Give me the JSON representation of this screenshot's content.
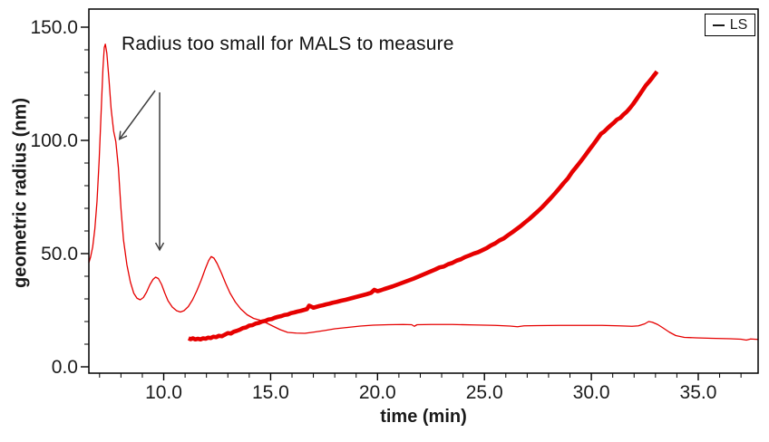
{
  "legend": {
    "entries": [
      {
        "label": "LS",
        "sample_color": "#1a1a1a"
      }
    ],
    "position": "top-right"
  },
  "annotation": {
    "text": "Radius too small for MALS to measure"
  },
  "chart_data": {
    "type": "line",
    "title": "",
    "xlabel": "time (min)",
    "ylabel": "geometric radius (nm)",
    "xlim": [
      6.5,
      37.8
    ],
    "ylim": [
      -2.8,
      158
    ],
    "grid": false,
    "legend_position": "top-right",
    "x_ticks": {
      "major": [
        10,
        15,
        20,
        25,
        30,
        35
      ],
      "labels": [
        "10.0",
        "15.0",
        "20.0",
        "25.0",
        "30.0",
        "35.0"
      ],
      "minor_step": 1
    },
    "y_ticks": {
      "major": [
        0,
        50,
        100,
        150
      ],
      "labels": [
        "0.0",
        "50.0",
        "100.0",
        "150.0"
      ],
      "minor_step": 10
    },
    "colors": {
      "series": "#e60000",
      "axis": "#000000",
      "arrow": "#3d3d3d",
      "text": "#1a1a1a"
    },
    "series": [
      {
        "name": "LS chromatogram (thin trace)",
        "stroke_width": 1.3,
        "points": [
          [
            6.5,
            46
          ],
          [
            6.58,
            48.5
          ],
          [
            6.68,
            53
          ],
          [
            6.78,
            61
          ],
          [
            6.88,
            73
          ],
          [
            6.98,
            91
          ],
          [
            7.08,
            114
          ],
          [
            7.16,
            132
          ],
          [
            7.22,
            141
          ],
          [
            7.27,
            142.5
          ],
          [
            7.34,
            138.5
          ],
          [
            7.44,
            127
          ],
          [
            7.54,
            114
          ],
          [
            7.66,
            104
          ],
          [
            7.76,
            99.5
          ],
          [
            7.88,
            88
          ],
          [
            8.0,
            70
          ],
          [
            8.12,
            56
          ],
          [
            8.28,
            45
          ],
          [
            8.44,
            37.5
          ],
          [
            8.6,
            32.5
          ],
          [
            8.75,
            30.3
          ],
          [
            8.9,
            29.6
          ],
          [
            9.05,
            30.6
          ],
          [
            9.2,
            33
          ],
          [
            9.35,
            36.2
          ],
          [
            9.5,
            38.6
          ],
          [
            9.62,
            39.6
          ],
          [
            9.75,
            39
          ],
          [
            9.9,
            36.4
          ],
          [
            10.05,
            32.6
          ],
          [
            10.2,
            29.2
          ],
          [
            10.4,
            26.4
          ],
          [
            10.6,
            24.8
          ],
          [
            10.78,
            24.2
          ],
          [
            10.95,
            24.8
          ],
          [
            11.15,
            26.6
          ],
          [
            11.35,
            29.6
          ],
          [
            11.55,
            33.6
          ],
          [
            11.75,
            38.2
          ],
          [
            11.95,
            43.4
          ],
          [
            12.1,
            46.9
          ],
          [
            12.22,
            48.7
          ],
          [
            12.35,
            48
          ],
          [
            12.5,
            45.6
          ],
          [
            12.7,
            41.4
          ],
          [
            12.9,
            36.8
          ],
          [
            13.1,
            32.6
          ],
          [
            13.35,
            28.6
          ],
          [
            13.6,
            25.6
          ],
          [
            13.9,
            23
          ],
          [
            14.2,
            21.4
          ],
          [
            14.5,
            20.6
          ],
          [
            14.8,
            19.4
          ],
          [
            15.1,
            18
          ],
          [
            15.45,
            16.4
          ],
          [
            15.8,
            15.2
          ],
          [
            16.2,
            14.9
          ],
          [
            16.6,
            14.8
          ],
          [
            17.0,
            15.3
          ],
          [
            17.5,
            16
          ],
          [
            18.0,
            16.8
          ],
          [
            18.6,
            17.4
          ],
          [
            19.2,
            18
          ],
          [
            19.8,
            18.4
          ],
          [
            20.5,
            18.6
          ],
          [
            21.2,
            18.7
          ],
          [
            21.6,
            18.6
          ],
          [
            21.72,
            17.9
          ],
          [
            21.85,
            18.6
          ],
          [
            22.5,
            18.7
          ],
          [
            23.5,
            18.7
          ],
          [
            24.5,
            18.5
          ],
          [
            25.5,
            18.3
          ],
          [
            26.2,
            18
          ],
          [
            26.55,
            17.7
          ],
          [
            26.85,
            18.1
          ],
          [
            27.5,
            18.2
          ],
          [
            28.5,
            18.3
          ],
          [
            29.5,
            18.3
          ],
          [
            30.5,
            18.3
          ],
          [
            31.3,
            18.1
          ],
          [
            31.9,
            17.9
          ],
          [
            32.2,
            18.1
          ],
          [
            32.5,
            19
          ],
          [
            32.68,
            20
          ],
          [
            32.85,
            19.7
          ],
          [
            33.1,
            18.7
          ],
          [
            33.35,
            17.2
          ],
          [
            33.65,
            15.3
          ],
          [
            33.95,
            13.8
          ],
          [
            34.35,
            13
          ],
          [
            34.9,
            12.8
          ],
          [
            35.6,
            12.6
          ],
          [
            36.5,
            12.4
          ],
          [
            37.0,
            12.2
          ],
          [
            37.25,
            11.8
          ],
          [
            37.45,
            12.3
          ],
          [
            37.8,
            12.1
          ]
        ]
      },
      {
        "name": "measured geometric radius (thick noisy trace)",
        "stroke_width": 4.6,
        "points": [
          [
            11.16,
            12.6
          ],
          [
            11.26,
            12.2
          ],
          [
            11.36,
            12.6
          ],
          [
            11.48,
            12.1
          ],
          [
            11.6,
            12.4
          ],
          [
            11.72,
            12.1
          ],
          [
            11.84,
            12.6
          ],
          [
            11.96,
            12.4
          ],
          [
            12.08,
            12.9
          ],
          [
            12.2,
            12.7
          ],
          [
            12.32,
            13.3
          ],
          [
            12.45,
            13.1
          ],
          [
            12.58,
            13.7
          ],
          [
            12.72,
            13.5
          ],
          [
            12.86,
            14.2
          ],
          [
            13.0,
            14.9
          ],
          [
            13.14,
            14.7
          ],
          [
            13.28,
            15.5
          ],
          [
            13.42,
            15.9
          ],
          [
            13.56,
            16.4
          ],
          [
            13.7,
            17.1
          ],
          [
            13.85,
            17.4
          ],
          [
            14.0,
            18.2
          ],
          [
            14.15,
            18.4
          ],
          [
            14.3,
            19.1
          ],
          [
            14.45,
            19.4
          ],
          [
            14.6,
            20.0
          ],
          [
            14.75,
            20.3
          ],
          [
            14.9,
            20.9
          ],
          [
            15.05,
            21.1
          ],
          [
            15.2,
            21.7
          ],
          [
            15.35,
            22.1
          ],
          [
            15.5,
            22.4
          ],
          [
            15.65,
            22.9
          ],
          [
            15.8,
            23.1
          ],
          [
            15.95,
            23.7
          ],
          [
            16.1,
            24.0
          ],
          [
            16.25,
            24.4
          ],
          [
            16.4,
            24.7
          ],
          [
            16.55,
            25.1
          ],
          [
            16.7,
            25.5
          ],
          [
            16.8,
            27.0
          ],
          [
            16.9,
            26.6
          ],
          [
            17.0,
            26.1
          ],
          [
            17.15,
            26.5
          ],
          [
            17.3,
            26.9
          ],
          [
            17.45,
            27.2
          ],
          [
            17.6,
            27.6
          ],
          [
            17.75,
            27.9
          ],
          [
            17.9,
            28.3
          ],
          [
            18.1,
            28.7
          ],
          [
            18.3,
            29.2
          ],
          [
            18.5,
            29.6
          ],
          [
            18.7,
            30.1
          ],
          [
            18.9,
            30.6
          ],
          [
            19.1,
            31.1
          ],
          [
            19.3,
            31.6
          ],
          [
            19.5,
            32.1
          ],
          [
            19.7,
            32.7
          ],
          [
            19.85,
            34.0
          ],
          [
            20.0,
            33.4
          ],
          [
            20.15,
            33.8
          ],
          [
            20.3,
            34.3
          ],
          [
            20.5,
            34.9
          ],
          [
            20.7,
            35.5
          ],
          [
            20.9,
            36.2
          ],
          [
            21.1,
            36.9
          ],
          [
            21.3,
            37.6
          ],
          [
            21.5,
            38.3
          ],
          [
            21.7,
            39.0
          ],
          [
            21.9,
            39.8
          ],
          [
            22.1,
            40.6
          ],
          [
            22.3,
            41.4
          ],
          [
            22.5,
            42.2
          ],
          [
            22.7,
            43.0
          ],
          [
            22.9,
            43.9
          ],
          [
            23.1,
            44.3
          ],
          [
            23.3,
            45.3
          ],
          [
            23.5,
            45.9
          ],
          [
            23.7,
            46.9
          ],
          [
            23.9,
            47.5
          ],
          [
            24.1,
            48.5
          ],
          [
            24.3,
            49.2
          ],
          [
            24.5,
            50.0
          ],
          [
            24.7,
            50.6
          ],
          [
            24.9,
            51.5
          ],
          [
            25.1,
            52.4
          ],
          [
            25.3,
            53.6
          ],
          [
            25.5,
            54.5
          ],
          [
            25.7,
            55.8
          ],
          [
            25.9,
            56.7
          ],
          [
            26.1,
            58.1
          ],
          [
            26.3,
            59.4
          ],
          [
            26.5,
            60.8
          ],
          [
            26.7,
            62.2
          ],
          [
            26.9,
            63.8
          ],
          [
            27.1,
            65.3
          ],
          [
            27.3,
            67.0
          ],
          [
            27.5,
            68.7
          ],
          [
            27.7,
            70.5
          ],
          [
            27.9,
            72.5
          ],
          [
            28.1,
            74.5
          ],
          [
            28.3,
            76.6
          ],
          [
            28.5,
            78.8
          ],
          [
            28.7,
            81.1
          ],
          [
            28.9,
            83.2
          ],
          [
            29.1,
            86.0
          ],
          [
            29.3,
            88.3
          ],
          [
            29.5,
            90.7
          ],
          [
            29.7,
            93.2
          ],
          [
            29.9,
            95.8
          ],
          [
            30.1,
            98.3
          ],
          [
            30.3,
            100.9
          ],
          [
            30.45,
            102.9
          ],
          [
            30.6,
            103.9
          ],
          [
            30.75,
            105.3
          ],
          [
            30.9,
            106.6
          ],
          [
            31.05,
            107.8
          ],
          [
            31.2,
            109.2
          ],
          [
            31.35,
            109.9
          ],
          [
            31.5,
            111.4
          ],
          [
            31.65,
            112.6
          ],
          [
            31.8,
            114.2
          ],
          [
            31.95,
            116.0
          ],
          [
            32.1,
            118.0
          ],
          [
            32.25,
            120.1
          ],
          [
            32.4,
            122.2
          ],
          [
            32.55,
            124.3
          ],
          [
            32.7,
            125.9
          ],
          [
            32.82,
            127.3
          ],
          [
            32.92,
            128.6
          ],
          [
            33.0,
            129.5
          ],
          [
            33.07,
            130.4
          ]
        ]
      }
    ],
    "arrows": [
      {
        "name": "arrow-to-first-peak",
        "from": [
          9.6,
          122.0
        ],
        "to": [
          7.93,
          100.5
        ]
      },
      {
        "name": "arrow-to-second-peak",
        "from": [
          9.81,
          121.2
        ],
        "to": [
          9.81,
          51.6
        ]
      }
    ],
    "annotations": [
      {
        "text": "Radius too small for MALS to measure"
      }
    ]
  }
}
